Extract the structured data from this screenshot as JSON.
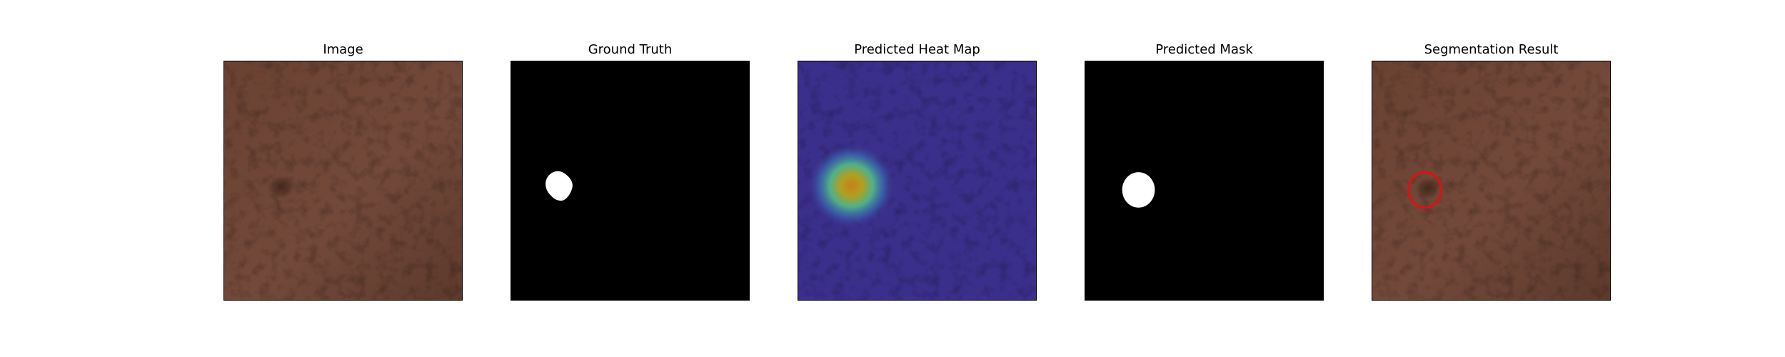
{
  "figure": {
    "panels": [
      {
        "title": "Image",
        "kind": "photo"
      },
      {
        "title": "Ground Truth",
        "kind": "ground-truth-mask"
      },
      {
        "title": "Predicted Heat Map",
        "kind": "heat-map"
      },
      {
        "title": "Predicted Mask",
        "kind": "predicted-mask"
      },
      {
        "title": "Segmentation Result",
        "kind": "overlay"
      }
    ],
    "colors": {
      "leather": "#6b4333",
      "mask_background": "#000000",
      "mask_foreground": "#ffffff",
      "heatmap_base": "#3d2f8a",
      "contour": "#e01010"
    }
  }
}
